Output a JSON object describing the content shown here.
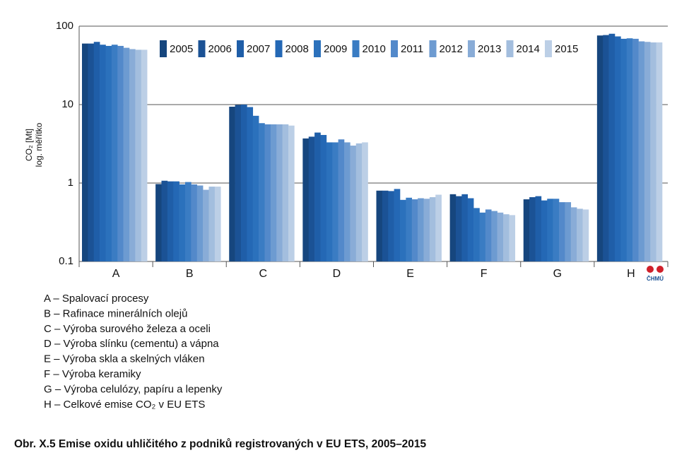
{
  "chart_data": {
    "type": "bar",
    "y_label": [
      "CO₂ [Mt]",
      "log. měřítko"
    ],
    "categories": [
      "A",
      "B",
      "C",
      "D",
      "E",
      "F",
      "G",
      "H"
    ],
    "series": [
      {
        "name": "2005",
        "color": "#16467e",
        "values": [
          60,
          0.97,
          9.4,
          3.7,
          0.8,
          0.72,
          0.62,
          76
        ]
      },
      {
        "name": "2006",
        "color": "#1b5295",
        "values": [
          60,
          1.07,
          9.9,
          3.9,
          0.8,
          0.68,
          0.66,
          77
        ]
      },
      {
        "name": "2007",
        "color": "#1f5ea8",
        "values": [
          63,
          1.05,
          10,
          4.4,
          0.79,
          0.72,
          0.68,
          80
        ]
      },
      {
        "name": "2008",
        "color": "#2468b5",
        "values": [
          58,
          1.05,
          9.3,
          4.1,
          0.84,
          0.64,
          0.6,
          74
        ]
      },
      {
        "name": "2009",
        "color": "#2b71bc",
        "values": [
          56,
          0.96,
          7.2,
          3.3,
          0.61,
          0.48,
          0.63,
          69
        ]
      },
      {
        "name": "2010",
        "color": "#3a7cc3",
        "values": [
          58,
          1.03,
          5.8,
          3.3,
          0.65,
          0.42,
          0.63,
          70
        ]
      },
      {
        "name": "2011",
        "color": "#5389ca",
        "values": [
          56,
          0.96,
          5.6,
          3.6,
          0.62,
          0.46,
          0.57,
          69
        ]
      },
      {
        "name": "2012",
        "color": "#6d9bd1",
        "values": [
          53,
          0.93,
          5.6,
          3.3,
          0.64,
          0.44,
          0.57,
          64
        ]
      },
      {
        "name": "2013",
        "color": "#89acd7",
        "values": [
          51,
          0.82,
          5.6,
          3.0,
          0.63,
          0.42,
          0.49,
          63
        ]
      },
      {
        "name": "2014",
        "color": "#a3bede",
        "values": [
          50,
          0.9,
          5.6,
          3.2,
          0.66,
          0.4,
          0.47,
          62
        ]
      },
      {
        "name": "2015",
        "color": "#bccfe6",
        "values": [
          50,
          0.9,
          5.4,
          3.3,
          0.71,
          0.39,
          0.46,
          62
        ]
      }
    ],
    "ylim": [
      0.1,
      100
    ],
    "yticks": [
      0.1,
      1,
      10,
      100
    ],
    "log_scale": true,
    "grid": true,
    "legend_position": "top-right",
    "logo": "ČHMÚ",
    "category_descriptions": [
      "A – Spalovací procesy",
      "B – Rafinace minerálních olejů",
      "C – Výroba surového železa a oceli",
      "D – Výroba slínku (cementu) a vápna",
      "E – Výroba skla a skelných vláken",
      "F – Výroba keramiky",
      "G – Výroba celulózy, papíru a lepenky",
      "H – Celkové emise CO₂ v EU ETS"
    ],
    "caption": "Obr. X.5  Emise oxidu uhličitého z podniků registrovaných v EU ETS, 2005–2015"
  }
}
